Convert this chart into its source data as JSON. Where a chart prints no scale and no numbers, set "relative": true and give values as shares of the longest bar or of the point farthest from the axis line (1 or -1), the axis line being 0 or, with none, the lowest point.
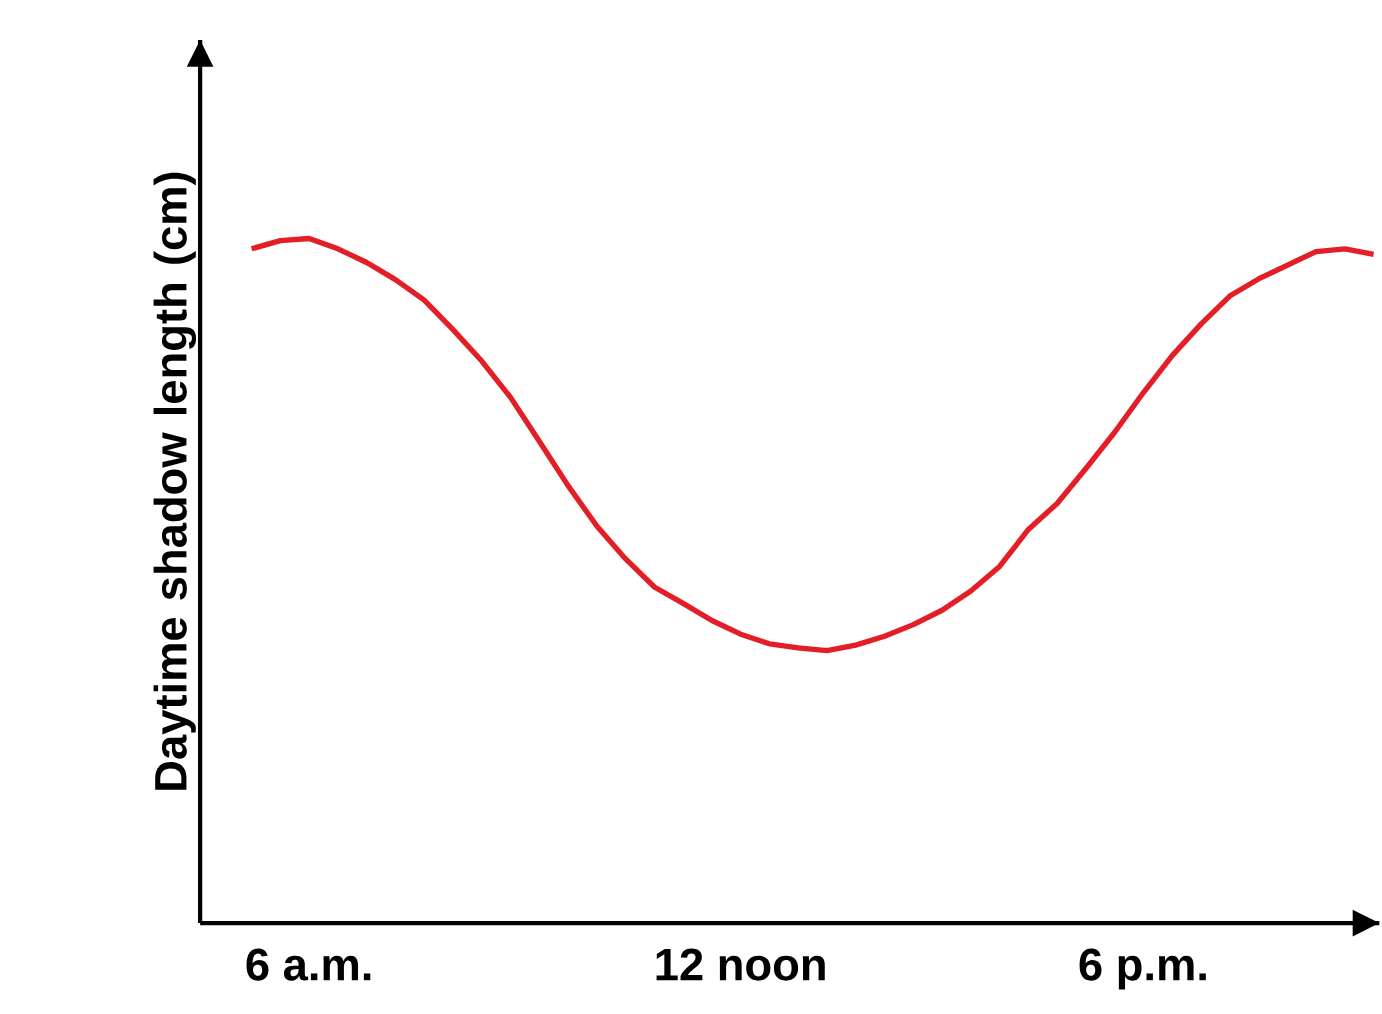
{
  "chart_data": {
    "type": "line",
    "relative": true,
    "ylabel": "Daytime shadow length (cm)",
    "categories": [
      null,
      null,
      "6 a.m.",
      null,
      null,
      null,
      null,
      null,
      null,
      null,
      null,
      null,
      null,
      null,
      null,
      null,
      null,
      "12 noon",
      null,
      null,
      null,
      null,
      null,
      null,
      null,
      null,
      null,
      null,
      null,
      null,
      null,
      "6 p.m.",
      null,
      null,
      null,
      null,
      null,
      null,
      null,
      null
    ],
    "values": [
      0.985,
      0.997,
      1.0,
      0.985,
      0.965,
      0.94,
      0.91,
      0.867,
      0.821,
      0.768,
      0.704,
      0.639,
      0.58,
      0.532,
      0.491,
      0.467,
      0.442,
      0.422,
      0.408,
      0.402,
      0.398,
      0.406,
      0.419,
      0.436,
      0.457,
      0.485,
      0.521,
      0.575,
      0.613,
      0.664,
      0.717,
      0.775,
      0.829,
      0.875,
      0.916,
      0.941,
      0.961,
      0.981,
      0.985,
      0.977
    ],
    "color": "#e41e26",
    "grid": false,
    "marker": "none",
    "line_style": "solid"
  }
}
